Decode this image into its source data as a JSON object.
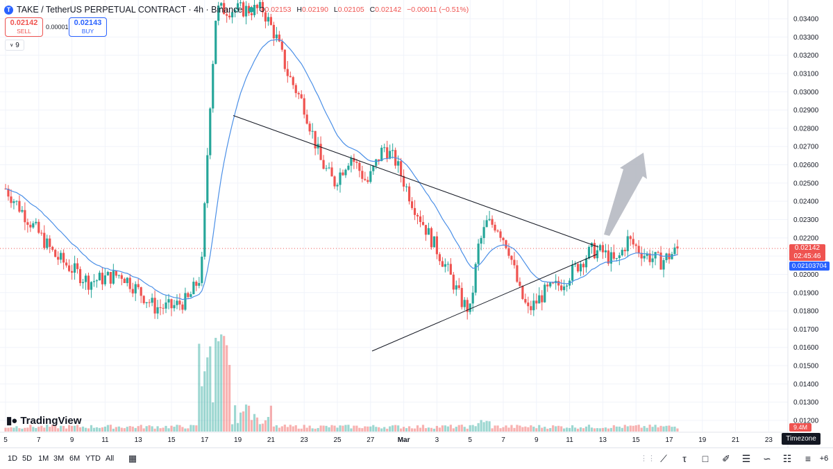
{
  "header": {
    "symbol_logo": "T",
    "title": "TAKE / TetherUS PERPETUAL CONTRACT · 4h · Binance",
    "ohlc": [
      {
        "k": "O",
        "v": "0.02153"
      },
      {
        "k": "H",
        "v": "0.02190"
      },
      {
        "k": "L",
        "v": "0.02105"
      },
      {
        "k": "C",
        "v": "0.02142"
      },
      {
        "k": "",
        "v": "−0.00011 (−0.51%)"
      }
    ]
  },
  "trade": {
    "sell_price": "0.02142",
    "sell_label": "SELL",
    "spread": "0.00001",
    "buy_price": "0.02143",
    "buy_label": "BUY"
  },
  "indicators_toggle": "9",
  "brand": "TradingView",
  "price_tags": {
    "last_price": "0.02142",
    "countdown": "02:45:46",
    "ma_value": "0.02103704",
    "volume": "9.4M"
  },
  "timezone_label": "Timezone",
  "timeframes": [
    "1D",
    "5D",
    "1M",
    "3M",
    "6M",
    "YTD",
    "All"
  ],
  "colors": {
    "up": "#26a69a",
    "down": "#ef5350",
    "ma": "#4a8fe7",
    "trend": "#131722",
    "arrow": "#b2b5be"
  },
  "chart_data": {
    "type": "candlestick",
    "y_ticks": [
      "0.03400",
      "0.03300",
      "0.03200",
      "0.03100",
      "0.03000",
      "0.02900",
      "0.02800",
      "0.02700",
      "0.02600",
      "0.02500",
      "0.02400",
      "0.02300",
      "0.02200",
      "0.02100",
      "0.02000",
      "0.01900",
      "0.01800",
      "0.01700",
      "0.01600",
      "0.01500",
      "0.01400",
      "0.01300",
      "0.01200"
    ],
    "x_ticks": [
      "5",
      "7",
      "9",
      "11",
      "13",
      "15",
      "17",
      "19",
      "21",
      "23",
      "25",
      "27",
      "Mar",
      "3",
      "5",
      "7",
      "9",
      "11",
      "13",
      "15",
      "17",
      "19",
      "21",
      "23"
    ],
    "ylim": [
      0.0118,
      0.0345
    ],
    "trendlines": [
      {
        "from": [
          19.0,
          0.0287
        ],
        "to": [
          13.5,
          0.0215
        ]
      },
      {
        "from": [
          27.1,
          0.0158
        ],
        "to": [
          13.5,
          0.0211
        ]
      }
    ],
    "moving_average_last": 0.02103704,
    "last_price": 0.02142,
    "anchors": [
      [
        0,
        0.0247
      ],
      [
        3,
        0.021
      ],
      [
        5,
        0.0196
      ],
      [
        7,
        0.02
      ],
      [
        9,
        0.0182
      ],
      [
        10,
        0.0182
      ],
      [
        11,
        0.0186
      ],
      [
        11.8,
        0.02
      ],
      [
        12.3,
        0.029
      ],
      [
        12.7,
        0.0345
      ],
      [
        13.6,
        0.0345
      ],
      [
        15.5,
        0.0345
      ],
      [
        16.3,
        0.033
      ],
      [
        17,
        0.031
      ],
      [
        18,
        0.0292
      ],
      [
        19,
        0.0262
      ],
      [
        19.8,
        0.025
      ],
      [
        20.8,
        0.0265
      ],
      [
        21.8,
        0.025
      ],
      [
        22.8,
        0.027
      ],
      [
        23.5,
        0.0262
      ],
      [
        24.5,
        0.024
      ],
      [
        25.5,
        0.0222
      ],
      [
        26.5,
        0.0205
      ],
      [
        27.5,
        0.0185
      ],
      [
        28,
        0.018
      ],
      [
        28.5,
        0.0215
      ],
      [
        29,
        0.0228
      ],
      [
        29.6,
        0.0227
      ],
      [
        30.3,
        0.0215
      ],
      [
        31,
        0.019
      ],
      [
        31.5,
        0.018
      ],
      [
        32.5,
        0.019
      ],
      [
        33.5,
        0.0195
      ],
      [
        34.5,
        0.0205
      ],
      [
        35.3,
        0.0213
      ],
      [
        36,
        0.0212
      ],
      [
        36.8,
        0.0206
      ],
      [
        37.5,
        0.0219
      ],
      [
        38.5,
        0.0211
      ],
      [
        39.5,
        0.0207
      ],
      [
        40.6,
        0.0214
      ]
    ],
    "volume_peak": "late 12"
  }
}
